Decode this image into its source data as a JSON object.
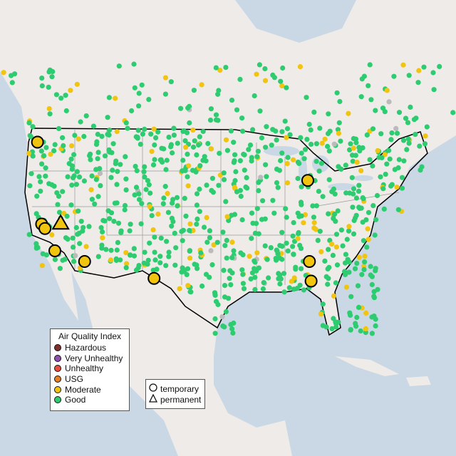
{
  "colors": {
    "ocean": "#c9d8e4",
    "land": "#efebe9",
    "Hazardous": "#7e2f2b",
    "Very Unhealthy": "#8e4fb0",
    "Unhealthy": "#e74c3c",
    "USG": "#e67e22",
    "Moderate": "#f1c40f",
    "Good": "#2ecc71",
    "nodata": "#bbbbbb"
  },
  "legend_aqi": {
    "title": "Air Quality Index",
    "items": [
      {
        "label": "Hazardous",
        "key": "Hazardous"
      },
      {
        "label": "Very Unhealthy",
        "key": "Very Unhealthy"
      },
      {
        "label": "Unhealthy",
        "key": "Unhealthy"
      },
      {
        "label": "USG",
        "key": "USG"
      },
      {
        "label": "Moderate",
        "key": "Moderate"
      },
      {
        "label": "Good",
        "key": "Good"
      }
    ]
  },
  "legend_type": {
    "items": [
      {
        "label": "temporary",
        "shape": "circle"
      },
      {
        "label": "permanent",
        "shape": "triangle"
      }
    ]
  },
  "highlighted_monitors": [
    {
      "lon": -120.3,
      "lat": 46.2,
      "category": "Moderate",
      "type": "temporary"
    },
    {
      "lon": -119.8,
      "lat": 37.0,
      "category": "Moderate",
      "type": "temporary"
    },
    {
      "lon": -119.4,
      "lat": 36.5,
      "category": "Moderate",
      "type": "temporary"
    },
    {
      "lon": -117.5,
      "lat": 37.1,
      "category": "Moderate",
      "type": "permanent"
    },
    {
      "lon": -118.2,
      "lat": 34.0,
      "category": "Moderate",
      "type": "temporary"
    },
    {
      "lon": -114.6,
      "lat": 32.8,
      "category": "Moderate",
      "type": "temporary"
    },
    {
      "lon": -106.2,
      "lat": 30.9,
      "category": "Moderate",
      "type": "temporary"
    },
    {
      "lon": -87.6,
      "lat": 41.9,
      "category": "Moderate",
      "type": "temporary"
    },
    {
      "lon": -87.4,
      "lat": 32.8,
      "category": "Moderate",
      "type": "temporary"
    },
    {
      "lon": -87.2,
      "lat": 30.6,
      "category": "Moderate",
      "type": "temporary"
    }
  ]
}
